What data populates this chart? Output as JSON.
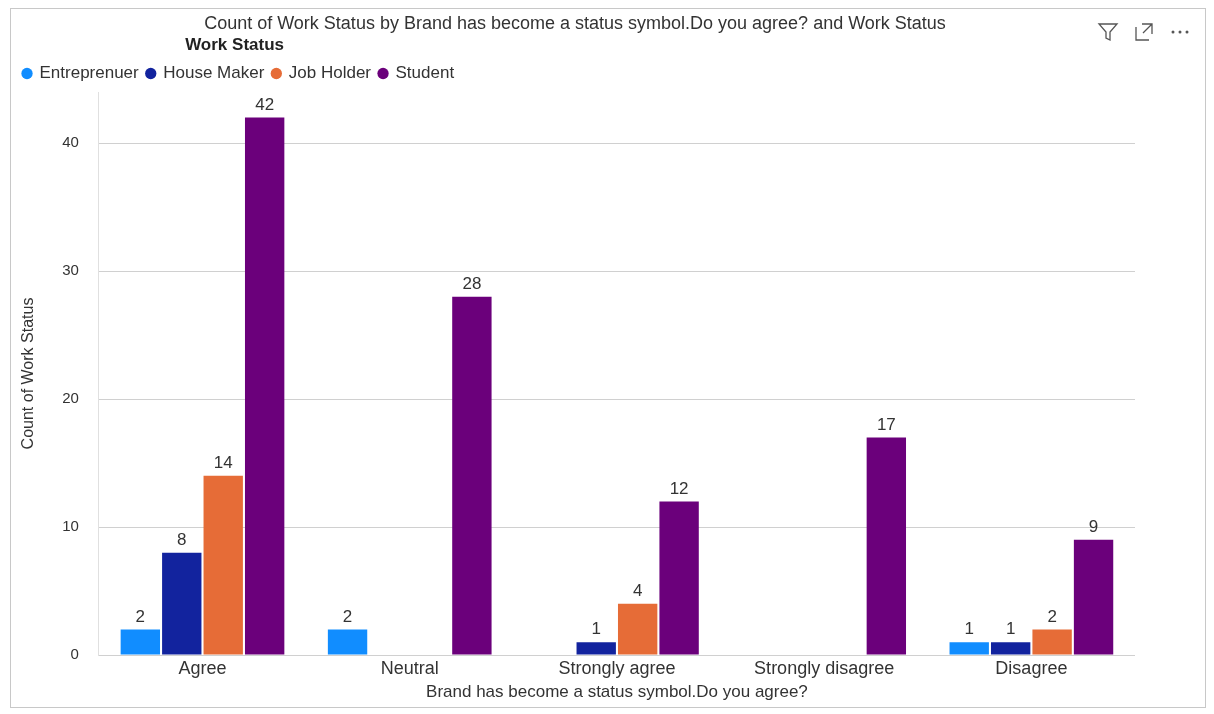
{
  "chart_data": {
    "type": "bar",
    "title": "Count of Work Status by Brand has become a status symbol.Do you agree? and Work Status",
    "xlabel": "Brand has become a status symbol.Do you agree?",
    "ylabel": "Count of Work Status",
    "legend_title": "Work Status",
    "legend": "top left",
    "grid": "y",
    "data_labels": true,
    "categories": [
      "Agree",
      "Neutral",
      "Strongly agree",
      "Strongly disagree",
      "Disagree"
    ],
    "series": [
      {
        "name": "Entreprenuer",
        "color": "#118dff",
        "values": [
          2,
          2,
          null,
          null,
          1
        ]
      },
      {
        "name": "House Maker",
        "color": "#12239e",
        "values": [
          8,
          null,
          1,
          null,
          1
        ]
      },
      {
        "name": "Job Holder",
        "color": "#e66c37",
        "values": [
          14,
          null,
          4,
          null,
          2
        ]
      },
      {
        "name": "Student",
        "color": "#6b007b",
        "values": [
          42,
          28,
          12,
          17,
          9
        ]
      }
    ],
    "ylim": [
      0,
      44
    ],
    "yticks": [
      0,
      10,
      20,
      30,
      40
    ]
  }
}
